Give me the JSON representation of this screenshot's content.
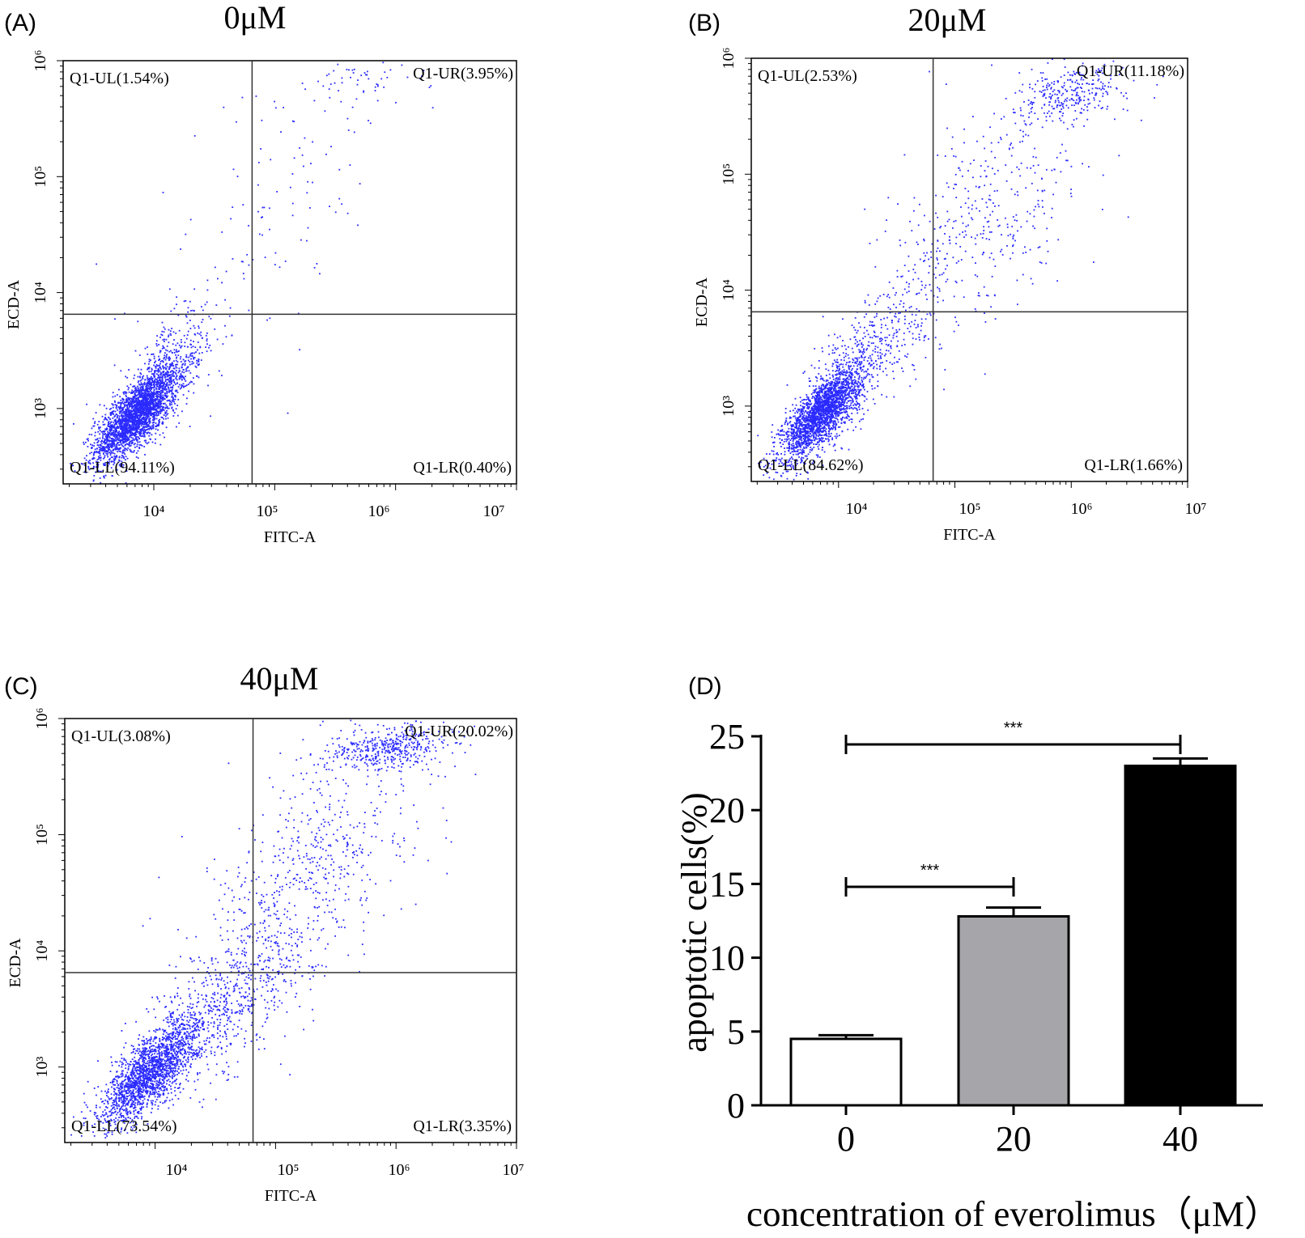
{
  "chart_data": [
    {
      "type": "scatter",
      "panel_label": "(A)",
      "title": "0μM",
      "xlabel": "FITC-A",
      "ylabel": "ECD-A",
      "scale": "log",
      "x_ticks": [
        "10⁴",
        "10⁵",
        "10⁶",
        "10⁷"
      ],
      "y_ticks": [
        "10³",
        "10⁴",
        "10⁵",
        "10⁶"
      ],
      "gate_x": 65000,
      "gate_y": 6500,
      "quadrants": {
        "UL": "Q1-UL(1.54%)",
        "UR": "Q1-UR(3.95%)",
        "LL": "Q1-LL(94.11%)",
        "LR": "Q1-LR(0.40%)"
      },
      "point_color": "#2a2aff"
    },
    {
      "type": "scatter",
      "panel_label": "(B)",
      "title": "20μM",
      "xlabel": "FITC-A",
      "ylabel": "ECD-A",
      "scale": "log",
      "x_ticks": [
        "10⁴",
        "10⁵",
        "10⁶",
        "10⁷"
      ],
      "y_ticks": [
        "10³",
        "10⁴",
        "10⁵",
        "10⁶"
      ],
      "gate_x": 65000,
      "gate_y": 6500,
      "quadrants": {
        "UL": "Q1-UL(2.53%)",
        "UR": "Q1-UR(11.18%)",
        "LL": "Q1-LL(84.62%)",
        "LR": "Q1-LR(1.66%)"
      },
      "point_color": "#2a2aff"
    },
    {
      "type": "scatter",
      "panel_label": "(C)",
      "title": "40μM",
      "xlabel": "FITC-A",
      "ylabel": "ECD-A",
      "scale": "log",
      "x_ticks": [
        "10⁴",
        "10⁵",
        "10⁶",
        "10⁷"
      ],
      "y_ticks": [
        "10³",
        "10⁴",
        "10⁵",
        "10⁶"
      ],
      "gate_x": 65000,
      "gate_y": 6500,
      "quadrants": {
        "UL": "Q1-UL(3.08%)",
        "UR": "Q1-UR(20.02%)",
        "LL": "Q1-LL(73.54%)",
        "LR": "Q1-LR(3.35%)"
      },
      "point_color": "#2a2aff"
    },
    {
      "type": "bar",
      "panel_label": "(D)",
      "title": "",
      "categories": [
        "0",
        "20",
        "40"
      ],
      "values": [
        4.5,
        12.8,
        23.0
      ],
      "errors": [
        0.25,
        0.6,
        0.5
      ],
      "bar_colors": [
        "#ffffff",
        "#a6a6aa",
        "#000000"
      ],
      "xlabel": "concentration of everolimus（μM）",
      "ylabel": "apoptotic cells(%)",
      "ylim": [
        0,
        25
      ],
      "y_ticks": [
        "0",
        "5",
        "10",
        "15",
        "20",
        "25"
      ],
      "significance": [
        {
          "from": "0",
          "to": "20",
          "label": "***"
        },
        {
          "from": "0",
          "to": "40",
          "label": "***"
        }
      ]
    }
  ]
}
